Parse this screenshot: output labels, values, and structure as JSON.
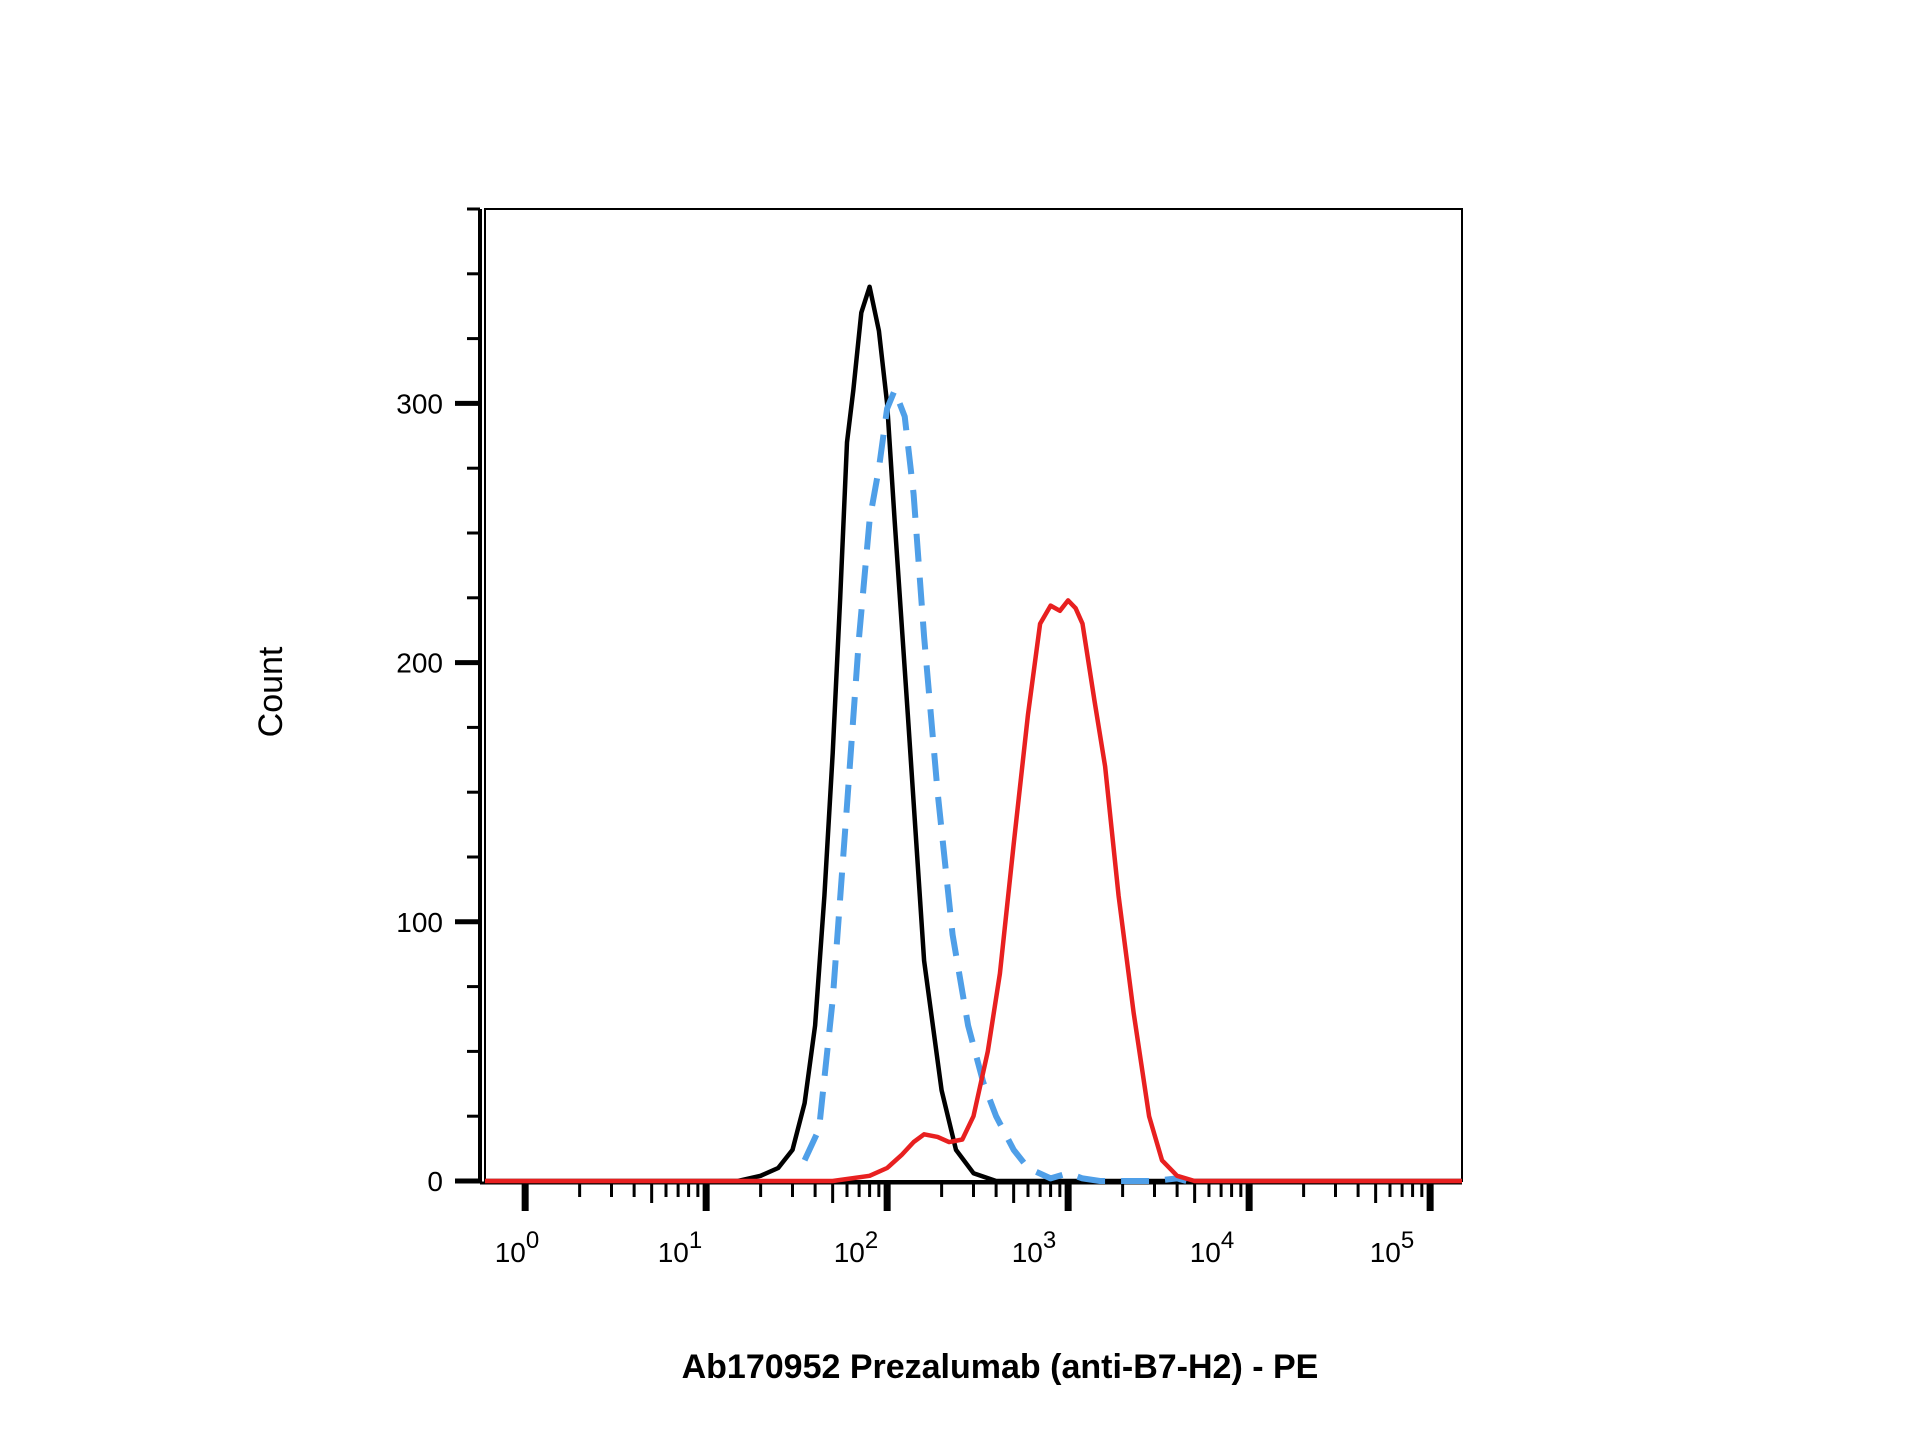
{
  "chart_data": {
    "type": "line",
    "title": "",
    "xlabel": "Ab170952 Prezalumab (anti-B7-H2) - PE",
    "ylabel": "Count",
    "xscale": "log",
    "xlim": [
      0.6,
      150000
    ],
    "ylim": [
      0,
      375
    ],
    "y_ticks": [
      0,
      100,
      200,
      300
    ],
    "x_tick_labels": [
      {
        "base": "10",
        "exp": "0"
      },
      {
        "base": "10",
        "exp": "1"
      },
      {
        "base": "10",
        "exp": "2"
      },
      {
        "base": "10",
        "exp": "3"
      },
      {
        "base": "10",
        "exp": "4"
      },
      {
        "base": "10",
        "exp": "5"
      }
    ],
    "grid": false,
    "legend": "none",
    "series": [
      {
        "color": "#000000",
        "style": "solid",
        "points": [
          [
            0.6,
            0
          ],
          [
            15,
            0
          ],
          [
            20,
            2
          ],
          [
            25,
            5
          ],
          [
            30,
            12
          ],
          [
            35,
            30
          ],
          [
            40,
            60
          ],
          [
            45,
            110
          ],
          [
            50,
            165
          ],
          [
            55,
            225
          ],
          [
            60,
            285
          ],
          [
            65,
            305
          ],
          [
            72,
            335
          ],
          [
            80,
            345
          ],
          [
            90,
            328
          ],
          [
            100,
            300
          ],
          [
            110,
            255
          ],
          [
            130,
            180
          ],
          [
            160,
            85
          ],
          [
            200,
            35
          ],
          [
            240,
            12
          ],
          [
            300,
            3
          ],
          [
            400,
            0
          ],
          [
            150000,
            0
          ]
        ]
      },
      {
        "color": "#4f9fe8",
        "style": "dashed",
        "points": [
          [
            35,
            8
          ],
          [
            42,
            20
          ],
          [
            50,
            70
          ],
          [
            60,
            145
          ],
          [
            70,
            210
          ],
          [
            80,
            255
          ],
          [
            90,
            275
          ],
          [
            100,
            298
          ],
          [
            110,
            305
          ],
          [
            125,
            295
          ],
          [
            140,
            265
          ],
          [
            160,
            210
          ],
          [
            190,
            150
          ],
          [
            230,
            95
          ],
          [
            280,
            60
          ],
          [
            340,
            38
          ],
          [
            400,
            25
          ],
          [
            500,
            12
          ],
          [
            600,
            5
          ],
          [
            800,
            1
          ],
          [
            1000,
            3
          ],
          [
            1200,
            1
          ],
          [
            1500,
            0
          ],
          [
            3000,
            0
          ],
          [
            4000,
            1
          ],
          [
            4500,
            0
          ]
        ]
      },
      {
        "color": "#e82020",
        "style": "solid",
        "points": [
          [
            0.6,
            0
          ],
          [
            50,
            0
          ],
          [
            80,
            2
          ],
          [
            100,
            5
          ],
          [
            120,
            10
          ],
          [
            140,
            15
          ],
          [
            160,
            18
          ],
          [
            190,
            17
          ],
          [
            220,
            15
          ],
          [
            260,
            16
          ],
          [
            300,
            25
          ],
          [
            360,
            50
          ],
          [
            420,
            80
          ],
          [
            500,
            130
          ],
          [
            600,
            180
          ],
          [
            700,
            215
          ],
          [
            800,
            222
          ],
          [
            900,
            220
          ],
          [
            1000,
            224
          ],
          [
            1100,
            221
          ],
          [
            1200,
            215
          ],
          [
            1400,
            185
          ],
          [
            1600,
            160
          ],
          [
            1900,
            110
          ],
          [
            2300,
            65
          ],
          [
            2800,
            25
          ],
          [
            3300,
            8
          ],
          [
            4000,
            2
          ],
          [
            5000,
            0
          ],
          [
            150000,
            0
          ]
        ]
      }
    ]
  }
}
